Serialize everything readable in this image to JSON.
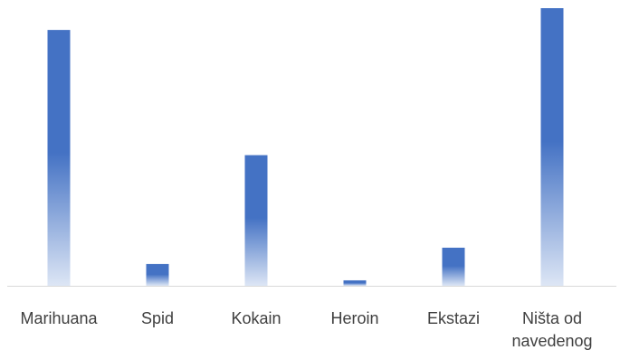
{
  "chart_data": {
    "type": "bar",
    "title": "",
    "xlabel": "",
    "ylabel": "",
    "categories": [
      [
        "Marihuana"
      ],
      [
        "Spid"
      ],
      [
        "Kokain"
      ],
      [
        "Heroin"
      ],
      [
        "Ekstazi"
      ],
      [
        "Ništa od",
        "navedenog"
      ]
    ],
    "values": [
      94,
      8,
      48,
      2,
      14,
      102
    ],
    "ylim": [
      0,
      105
    ],
    "grid": false,
    "legend": "none",
    "colors": {
      "bar_top": "#4472c4",
      "bar_bottom": "#dde6f5",
      "axis": "#d9d9d9",
      "text": "#404040"
    }
  }
}
